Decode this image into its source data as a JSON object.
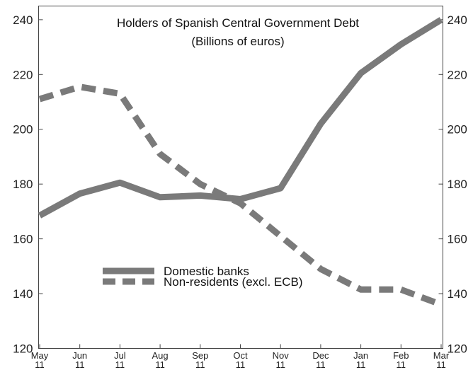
{
  "chart_data": {
    "type": "line",
    "title": "Holders of Spanish Central Government Debt",
    "subtitle": "(Billions of euros)",
    "categories": [
      {
        "month": "May",
        "year": "11"
      },
      {
        "month": "Jun",
        "year": "11"
      },
      {
        "month": "Jul",
        "year": "11"
      },
      {
        "month": "Aug",
        "year": "11"
      },
      {
        "month": "Sep",
        "year": "11"
      },
      {
        "month": "Oct",
        "year": "11"
      },
      {
        "month": "Nov",
        "year": "11"
      },
      {
        "month": "Dec",
        "year": "11"
      },
      {
        "month": "Jan",
        "year": "11"
      },
      {
        "month": "Feb",
        "year": "11"
      },
      {
        "month": "Mar",
        "year": "11"
      }
    ],
    "yticks": [
      120,
      140,
      160,
      180,
      200,
      220,
      240
    ],
    "ylim": [
      120,
      245
    ],
    "grid": false,
    "legend_position": "bottom-left",
    "series": [
      {
        "name": "Domestic banks",
        "style": "solid",
        "color": "#7a7a7a",
        "values": [
          168.5,
          176.5,
          180.5,
          175.2,
          175.8,
          174.5,
          178.5,
          202,
          220.5,
          231,
          240
        ]
      },
      {
        "name": "Non-residents (excl. ECB)",
        "style": "dashed",
        "color": "#7a7a7a",
        "values": [
          211,
          215.5,
          213,
          191,
          180,
          173,
          161,
          149,
          141.5,
          141.5,
          136
        ]
      }
    ]
  }
}
